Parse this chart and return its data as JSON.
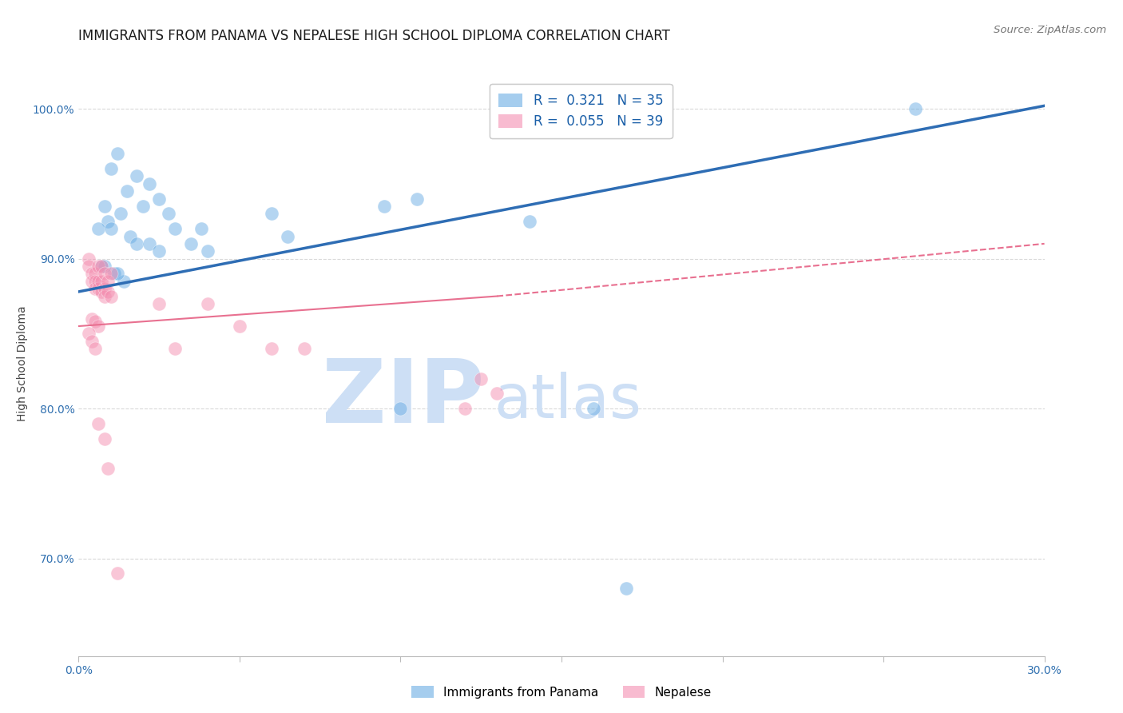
{
  "title": "IMMIGRANTS FROM PANAMA VS NEPALESE HIGH SCHOOL DIPLOMA CORRELATION CHART",
  "source": "Source: ZipAtlas.com",
  "ylabel": "High School Diploma",
  "xlim": [
    0.0,
    0.3
  ],
  "ylim": [
    0.635,
    1.025
  ],
  "xticks": [
    0.0,
    0.05,
    0.1,
    0.15,
    0.2,
    0.25,
    0.3
  ],
  "xticklabels": [
    "0.0%",
    "",
    "",
    "",
    "",
    "",
    "30.0%"
  ],
  "ytick_positions": [
    0.7,
    0.8,
    0.9,
    1.0
  ],
  "ytick_labels": [
    "70.0%",
    "80.0%",
    "90.0%",
    "100.0%"
  ],
  "legend_entries": [
    {
      "label": "R =  0.321   N = 35",
      "color": "#7eb3e0"
    },
    {
      "label": "R =  0.055   N = 39",
      "color": "#f4a0b0"
    }
  ],
  "legend_bottom": [
    "Immigrants from Panama",
    "Nepalese"
  ],
  "blue_scatter_x": [
    0.012,
    0.01,
    0.018,
    0.022,
    0.015,
    0.025,
    0.02,
    0.008,
    0.013,
    0.009,
    0.006,
    0.01,
    0.016,
    0.018,
    0.022,
    0.025,
    0.028,
    0.03,
    0.035,
    0.038,
    0.04,
    0.06,
    0.065,
    0.095,
    0.1,
    0.105,
    0.14,
    0.16,
    0.17,
    0.26,
    0.007,
    0.011,
    0.014,
    0.012,
    0.008
  ],
  "blue_scatter_y": [
    0.97,
    0.96,
    0.955,
    0.95,
    0.945,
    0.94,
    0.935,
    0.935,
    0.93,
    0.925,
    0.92,
    0.92,
    0.915,
    0.91,
    0.91,
    0.905,
    0.93,
    0.92,
    0.91,
    0.92,
    0.905,
    0.93,
    0.915,
    0.935,
    0.8,
    0.94,
    0.925,
    0.8,
    0.68,
    1.0,
    0.895,
    0.89,
    0.885,
    0.89,
    0.895
  ],
  "pink_scatter_x": [
    0.003,
    0.003,
    0.004,
    0.004,
    0.005,
    0.005,
    0.005,
    0.006,
    0.006,
    0.006,
    0.007,
    0.007,
    0.007,
    0.008,
    0.008,
    0.008,
    0.009,
    0.009,
    0.01,
    0.01,
    0.004,
    0.005,
    0.006,
    0.003,
    0.004,
    0.005,
    0.025,
    0.03,
    0.04,
    0.05,
    0.06,
    0.07,
    0.12,
    0.125,
    0.13,
    0.006,
    0.008,
    0.009,
    0.012
  ],
  "pink_scatter_y": [
    0.9,
    0.895,
    0.89,
    0.885,
    0.89,
    0.885,
    0.88,
    0.895,
    0.885,
    0.88,
    0.895,
    0.885,
    0.878,
    0.89,
    0.88,
    0.875,
    0.885,
    0.878,
    0.89,
    0.875,
    0.86,
    0.858,
    0.855,
    0.85,
    0.845,
    0.84,
    0.87,
    0.84,
    0.87,
    0.855,
    0.84,
    0.84,
    0.8,
    0.82,
    0.81,
    0.79,
    0.78,
    0.76,
    0.69
  ],
  "blue_line_x": [
    0.0,
    0.3
  ],
  "blue_line_y": [
    0.878,
    1.002
  ],
  "pink_solid_line_x": [
    0.0,
    0.13
  ],
  "pink_solid_line_y": [
    0.855,
    0.875
  ],
  "pink_dashed_line_x": [
    0.13,
    0.3
  ],
  "pink_dashed_line_y": [
    0.875,
    0.91
  ],
  "watermark_zip": "ZIP",
  "watermark_atlas": "atlas",
  "watermark_color": "#cddff5",
  "background_color": "#ffffff",
  "grid_color": "#d0d0d0",
  "title_fontsize": 12,
  "axis_label_fontsize": 10,
  "tick_fontsize": 10,
  "blue_color": "#6aade4",
  "pink_color": "#f48fb1",
  "blue_line_color": "#2e6db4",
  "pink_line_color": "#e87090"
}
